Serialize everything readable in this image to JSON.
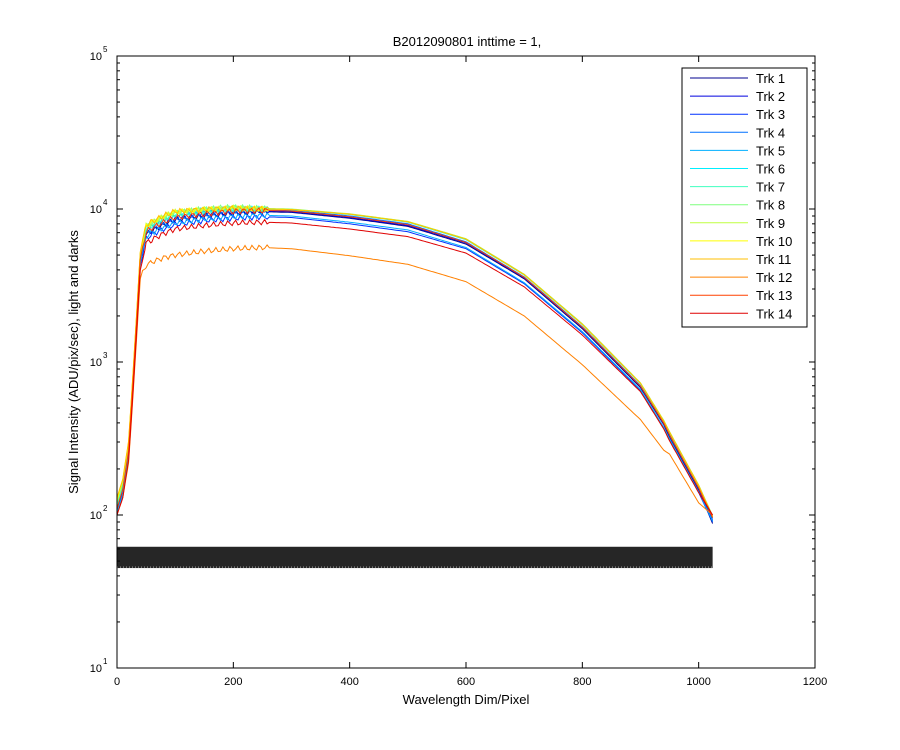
{
  "chart_data": {
    "type": "line",
    "title": "B2012090801 inttime = 1,",
    "xlabel": "Wavelength Dim/Pixel",
    "ylabel": "Signal Intensity (ADU/pix/sec), light and darks",
    "xlim": [
      0,
      1200
    ],
    "ylim": [
      10,
      100000
    ],
    "yscale": "log",
    "xticks": [
      "0",
      "200",
      "400",
      "600",
      "800",
      "1000",
      "1200"
    ],
    "yticks": [
      {
        "base": "10",
        "exp": "1"
      },
      {
        "base": "10",
        "exp": "2"
      },
      {
        "base": "10",
        "exp": "3"
      },
      {
        "base": "10",
        "exp": "4"
      },
      {
        "base": "10",
        "exp": "5"
      }
    ],
    "grid": false,
    "legend_position": "top-right",
    "curve_x": [
      0,
      10,
      20,
      30,
      40,
      50,
      60,
      80,
      100,
      150,
      200,
      250,
      300,
      400,
      500,
      600,
      700,
      800,
      900,
      940,
      950,
      1000,
      1024
    ],
    "series": [
      {
        "name": "Trk 1",
        "color": "#00008f",
        "values": [
          105,
          140,
          250,
          1000,
          4500,
          6800,
          7200,
          7900,
          8500,
          9000,
          9400,
          9600,
          9500,
          8700,
          7700,
          5900,
          3500,
          1650,
          680,
          390,
          320,
          145,
          88
        ]
      },
      {
        "name": "Trk 2",
        "color": "#0000df",
        "values": [
          108,
          142,
          255,
          1020,
          4600,
          6900,
          7300,
          8000,
          8600,
          9100,
          9500,
          9700,
          9600,
          8800,
          7800,
          6000,
          3550,
          1680,
          690,
          395,
          330,
          148,
          92
        ]
      },
      {
        "name": "Trk 3",
        "color": "#0030ff",
        "values": [
          102,
          135,
          240,
          950,
          4300,
          6400,
          6800,
          7400,
          7900,
          8400,
          8700,
          8900,
          8800,
          8000,
          7100,
          5500,
          3250,
          1550,
          650,
          370,
          310,
          140,
          90
        ]
      },
      {
        "name": "Trk 4",
        "color": "#0070ff",
        "values": [
          112,
          150,
          270,
          1080,
          4800,
          7200,
          7600,
          8300,
          8900,
          9400,
          9800,
          9900,
          9800,
          9000,
          8000,
          6100,
          3600,
          1700,
          700,
          400,
          335,
          150,
          95
        ]
      },
      {
        "name": "Trk 5",
        "color": "#00afff",
        "values": [
          104,
          138,
          245,
          980,
          4400,
          6600,
          7000,
          7600,
          8100,
          8600,
          8900,
          9100,
          9000,
          8200,
          7300,
          5600,
          3300,
          1580,
          660,
          375,
          315,
          142,
          91
        ]
      },
      {
        "name": "Trk 6",
        "color": "#00efff",
        "values": [
          118,
          160,
          285,
          1120,
          5000,
          7500,
          7900,
          8700,
          9300,
          9800,
          10000,
          10000,
          9900,
          9200,
          8200,
          6300,
          3700,
          1750,
          720,
          410,
          345,
          155,
          97
        ]
      },
      {
        "name": "Trk 7",
        "color": "#40ffbf",
        "values": [
          115,
          156,
          280,
          1100,
          4900,
          7400,
          7800,
          8600,
          9200,
          9700,
          10100,
          10000,
          9950,
          9250,
          8250,
          6350,
          3720,
          1760,
          725,
          412,
          348,
          156,
          98
        ]
      },
      {
        "name": "Trk 8",
        "color": "#7fff7f",
        "values": [
          120,
          165,
          290,
          1150,
          5100,
          7700,
          8100,
          8900,
          9500,
          10000,
          10300,
          10100,
          10000,
          9300,
          8300,
          6400,
          3750,
          1780,
          730,
          415,
          350,
          157,
          99
        ]
      },
      {
        "name": "Trk 9",
        "color": "#bfff40",
        "values": [
          122,
          168,
          295,
          1160,
          5150,
          7750,
          8150,
          8950,
          9550,
          9950,
          10200,
          10050,
          9950,
          9280,
          8280,
          6380,
          3740,
          1770,
          728,
          413,
          349,
          156,
          98
        ]
      },
      {
        "name": "Trk 10",
        "color": "#ffff00",
        "values": [
          125,
          170,
          300,
          1180,
          5200,
          7800,
          8200,
          9000,
          9600,
          9900,
          10100,
          10000,
          9900,
          9250,
          8250,
          6350,
          3720,
          1760,
          725,
          410,
          347,
          155,
          97
        ]
      },
      {
        "name": "Trk 11",
        "color": "#ffbf00",
        "values": [
          130,
          172,
          305,
          1190,
          5250,
          7850,
          8250,
          9050,
          9650,
          9950,
          10150,
          10020,
          9920,
          9260,
          8260,
          6360,
          3730,
          1765,
          726,
          411,
          348,
          156,
          98
        ]
      },
      {
        "name": "Trk 12",
        "color": "#ff8000",
        "values": [
          100,
          130,
          220,
          850,
          3500,
          4300,
          4500,
          4800,
          5000,
          5300,
          5500,
          5600,
          5500,
          4950,
          4350,
          3350,
          2000,
          960,
          420,
          265,
          250,
          120,
          100
        ]
      },
      {
        "name": "Trk 13",
        "color": "#ff4000",
        "values": [
          110,
          148,
          265,
          1060,
          4700,
          7100,
          7500,
          8200,
          8800,
          9300,
          9700,
          9800,
          9700,
          8900,
          7900,
          6050,
          3580,
          1690,
          695,
          398,
          333,
          150,
          96
        ]
      },
      {
        "name": "Trk 14",
        "color": "#df0000",
        "values": [
          100,
          130,
          230,
          900,
          4000,
          6000,
          6300,
          6900,
          7400,
          7800,
          8100,
          8200,
          8100,
          7400,
          6600,
          5150,
          3100,
          1500,
          640,
          365,
          305,
          140,
          100
        ]
      }
    ],
    "darks": {
      "x_start": 0,
      "x_end": 1024,
      "low": 45,
      "high": 62,
      "color": "#000000"
    }
  }
}
